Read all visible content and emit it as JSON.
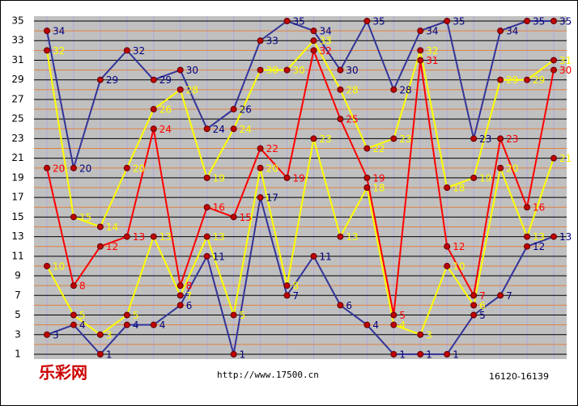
{
  "chart_data": {
    "type": "line",
    "logo": "乐彩网",
    "source": "http://www.17500.cn",
    "period": "16120-16139",
    "ylim": [
      1,
      35
    ],
    "yticks": [
      1,
      3,
      5,
      7,
      9,
      11,
      13,
      15,
      17,
      19,
      21,
      23,
      25,
      27,
      29,
      31,
      33,
      35
    ],
    "grid": true,
    "series": [
      {
        "color": "#333399",
        "label_color": "#000080",
        "values": [
          34,
          20,
          29,
          32,
          29,
          30,
          24,
          26,
          33,
          35,
          34,
          30,
          35,
          28,
          34,
          35,
          23,
          34,
          35,
          35
        ]
      },
      {
        "color": "#ffff00",
        "label_color": "#ffff00",
        "values": [
          32,
          15,
          14,
          20,
          26,
          28,
          19,
          24,
          30,
          30,
          33,
          28,
          22,
          23,
          32,
          18,
          19,
          29,
          29,
          31
        ]
      },
      {
        "color": "#ff0000",
        "label_color": "#ff0000",
        "values": [
          20,
          8,
          12,
          13,
          24,
          8,
          16,
          15,
          22,
          19,
          32,
          25,
          19,
          5,
          31,
          12,
          7,
          23,
          16,
          30
        ]
      },
      {
        "color": "#ffff00",
        "label_color": "#ffff00",
        "values": [
          10,
          5,
          3,
          5,
          13,
          7,
          13,
          5,
          20,
          8,
          23,
          13,
          18,
          4,
          3,
          10,
          6,
          20,
          13,
          21
        ]
      },
      {
        "color": "#333399",
        "label_color": "#000080",
        "values": [
          3,
          4,
          1,
          4,
          4,
          6,
          11,
          1,
          17,
          7,
          11,
          6,
          4,
          1,
          1,
          1,
          5,
          7,
          12,
          13
        ]
      }
    ]
  }
}
